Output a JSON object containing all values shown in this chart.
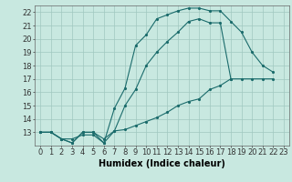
{
  "background_color": "#c8e8e0",
  "grid_color": "#a0c8c0",
  "line_color": "#1a6b6b",
  "xlabel": "Humidex (Indice chaleur)",
  "xlabel_fontsize": 7,
  "tick_fontsize": 6,
  "ylim": [
    12,
    22.5
  ],
  "xlim": [
    -0.5,
    23.5
  ],
  "yticks": [
    13,
    14,
    15,
    16,
    17,
    18,
    19,
    20,
    21,
    22
  ],
  "xticks": [
    0,
    1,
    2,
    3,
    4,
    5,
    6,
    7,
    8,
    9,
    10,
    11,
    12,
    13,
    14,
    15,
    16,
    17,
    18,
    19,
    20,
    21,
    22,
    23
  ],
  "series": [
    {
      "x": [
        0,
        1,
        2,
        3,
        4,
        5,
        6,
        7,
        8,
        9,
        10,
        11,
        12,
        13,
        14,
        15,
        16,
        17,
        18,
        19,
        20,
        21,
        22
      ],
      "y": [
        13,
        13,
        12.5,
        12.2,
        13,
        13,
        12.2,
        14.8,
        16.3,
        19.5,
        20.3,
        21.5,
        21.8,
        22.1,
        22.3,
        22.3,
        22.1,
        22.1,
        21.3,
        20.5,
        19.0,
        18.0,
        17.5
      ]
    },
    {
      "x": [
        0,
        1,
        2,
        3,
        4,
        5,
        6,
        7,
        8,
        9,
        10,
        11,
        12,
        13,
        14,
        15,
        16,
        17,
        18
      ],
      "y": [
        13,
        13,
        12.5,
        12.2,
        13,
        13,
        12.5,
        13.1,
        15.0,
        16.2,
        18.0,
        19.0,
        19.8,
        20.5,
        21.3,
        21.5,
        21.2,
        21.2,
        17.0
      ]
    },
    {
      "x": [
        0,
        1,
        2,
        3,
        4,
        5,
        6,
        7,
        8,
        9,
        10,
        11,
        12,
        13,
        14,
        15,
        16,
        17,
        18,
        19,
        20,
        21,
        22
      ],
      "y": [
        13,
        13,
        12.5,
        12.5,
        12.8,
        12.8,
        12.2,
        13.1,
        13.2,
        13.5,
        13.8,
        14.1,
        14.5,
        15.0,
        15.3,
        15.5,
        16.2,
        16.5,
        17.0,
        17.0,
        17.0,
        17.0,
        17.0
      ]
    }
  ]
}
